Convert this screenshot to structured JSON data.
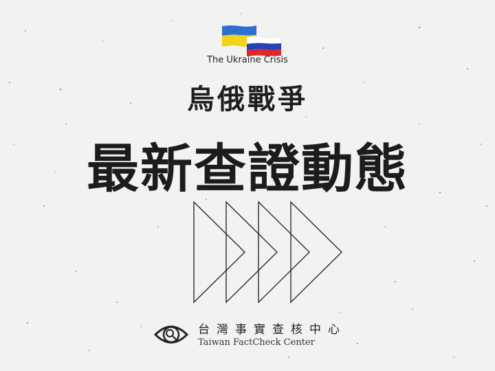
{
  "subtitle_en": "The Ukraine Crisis",
  "headline_small": "烏俄戰爭",
  "headline_large": "最新查證動態",
  "organization": {
    "name_zh": "台灣事實查核中心",
    "name_en": "Taiwan FactCheck Center"
  },
  "colors": {
    "background": "#f2f2f0",
    "text": "#1c1c1c",
    "ukraine_blue": "#2f6fcf",
    "ukraine_yellow": "#f2d21b",
    "russia_white": "#ffffff",
    "russia_blue": "#2443b8",
    "russia_red": "#e0262b"
  },
  "icons": {
    "flags": "ukraine-and-russia-flags-icon",
    "arrows": "forward-chevrons-icon",
    "logo": "eye-magnifier-logo-icon"
  }
}
